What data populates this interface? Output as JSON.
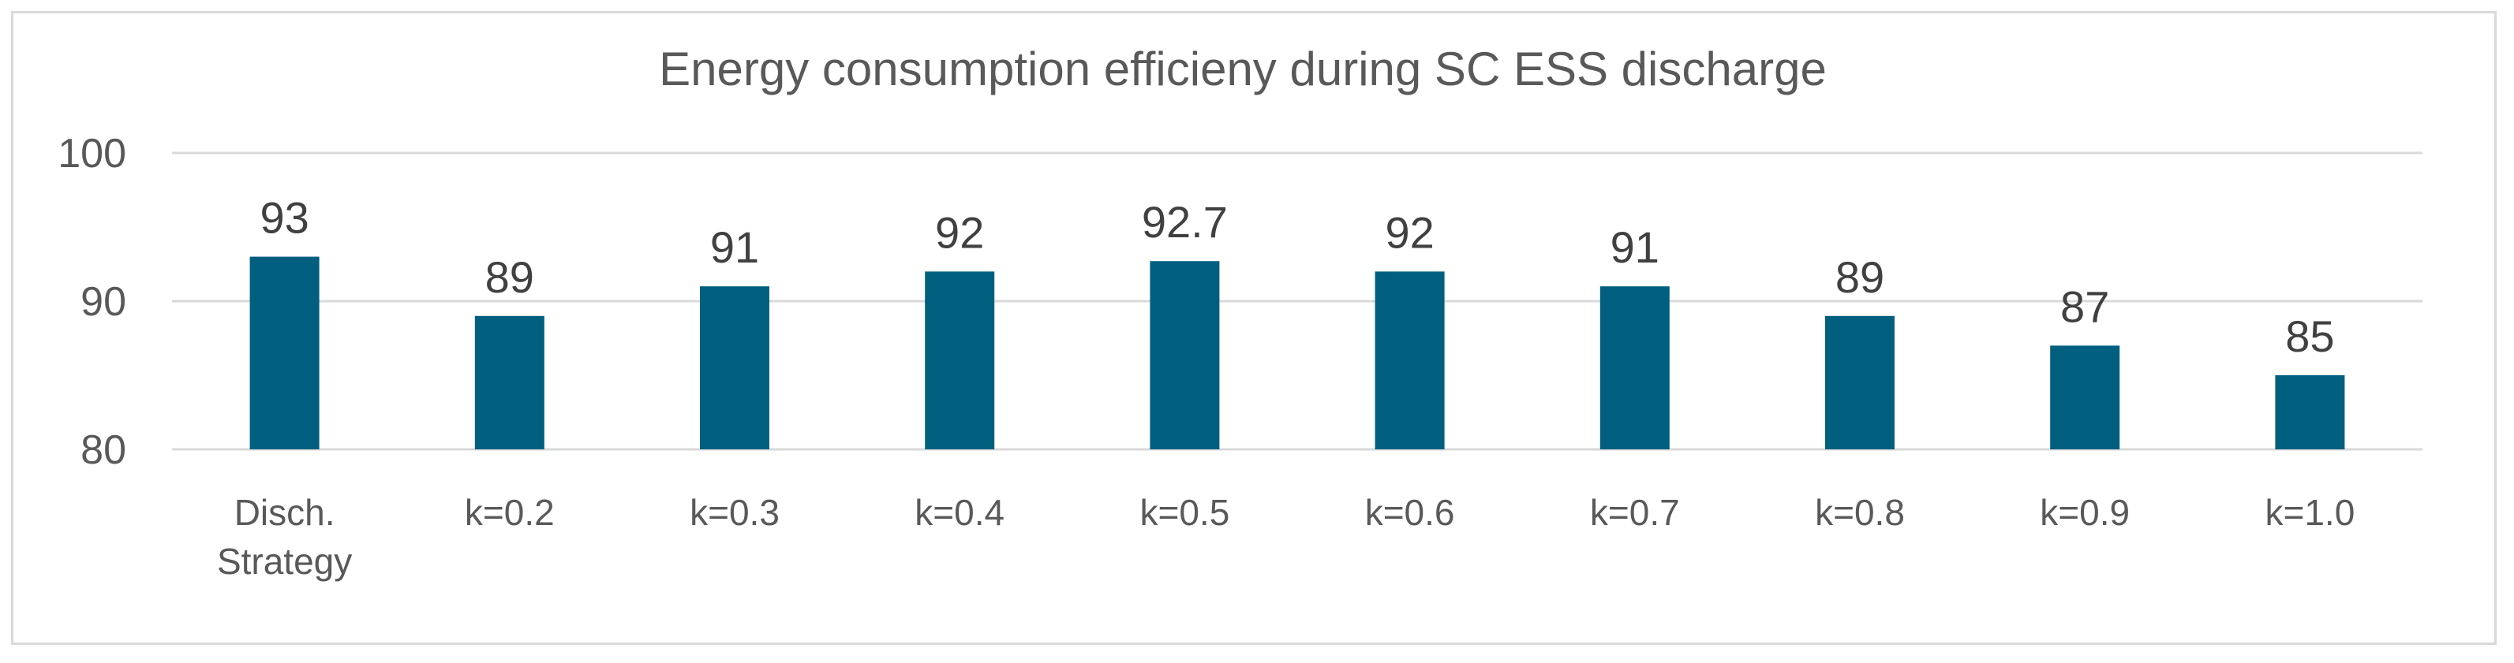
{
  "chart_data": {
    "type": "bar",
    "title": "Energy consumption efficieny during SC ESS discharge",
    "categories": [
      [
        "Disch.",
        "Strategy"
      ],
      [
        "k=0.2"
      ],
      [
        "k=0.3"
      ],
      [
        "k=0.4"
      ],
      [
        "k=0.5"
      ],
      [
        "k=0.6"
      ],
      [
        "k=0.7"
      ],
      [
        "k=0.8"
      ],
      [
        "k=0.9"
      ],
      [
        "k=1.0"
      ]
    ],
    "values": [
      93,
      89,
      91,
      92,
      92.7,
      92,
      91,
      89,
      87,
      85
    ],
    "data_labels": [
      "93",
      "89",
      "91",
      "92",
      "92.7",
      "92",
      "91",
      "89",
      "87",
      "85"
    ],
    "xlabel": "",
    "ylabel": "",
    "ylim": [
      80,
      100
    ],
    "yticks": [
      80,
      90,
      100
    ],
    "grid": true,
    "legend": "none",
    "bar_color": "#005f7f",
    "grid_color": "#d9d9d9",
    "text_color": "#595959"
  }
}
